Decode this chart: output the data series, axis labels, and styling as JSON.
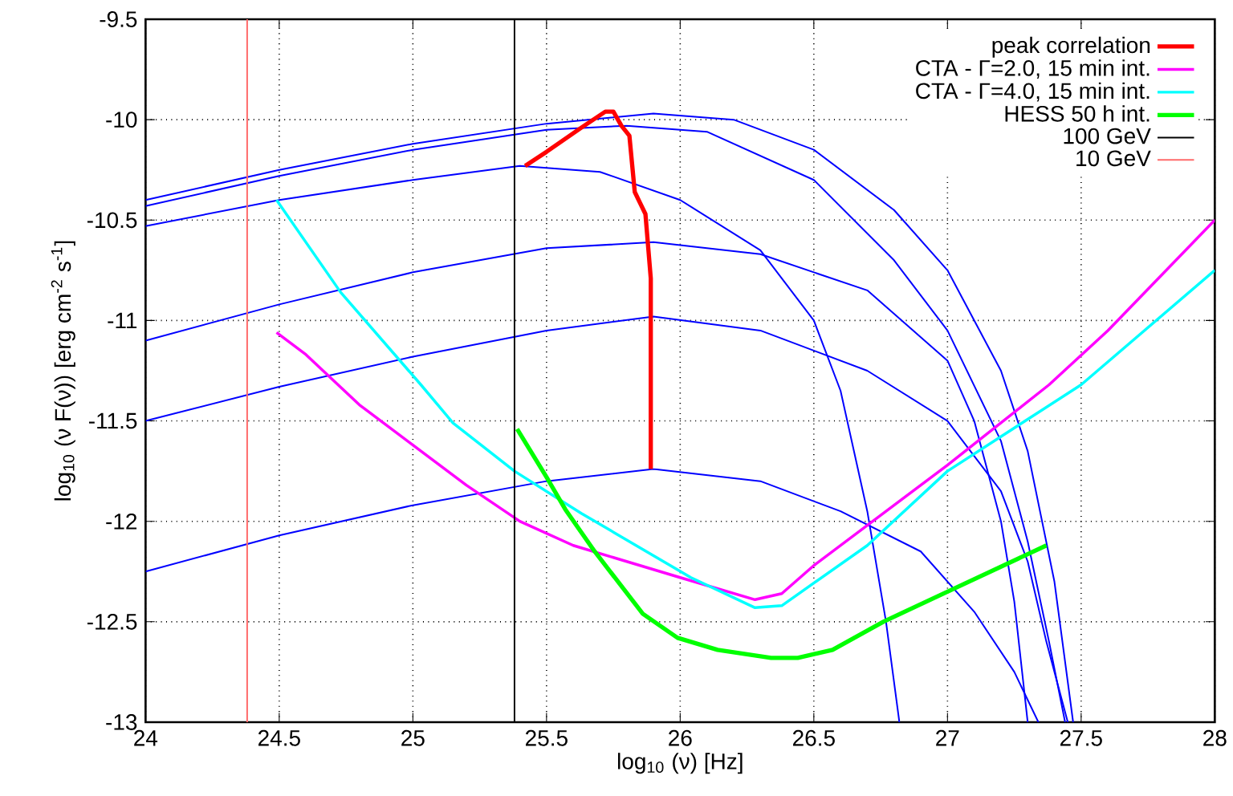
{
  "chart_data": {
    "type": "line",
    "xlabel": "log$_{10}$ (ν) [Hz]",
    "ylabel": "log$_{10}$ (ν F(ν)) [erg cm$^{-2}$ s$^{-1}$]",
    "xlim": [
      24,
      28
    ],
    "ylim": [
      -13,
      -9.5
    ],
    "xticks": [
      24,
      24.5,
      25,
      25.5,
      26,
      26.5,
      27,
      27.5,
      28
    ],
    "yticks": [
      -13,
      -12.5,
      -12,
      -11.5,
      -11,
      -10.5,
      -10,
      -9.5
    ],
    "grid": true,
    "legend": "top right",
    "marker": "none",
    "line_style": "solid",
    "series": [
      {
        "name": "peak correlation",
        "color": "#ff0000",
        "x": [
          25.42,
          25.5,
          25.63,
          25.72,
          25.75,
          25.78,
          25.81,
          25.83,
          25.87,
          25.89,
          25.89
        ],
        "values": [
          -10.23,
          -10.16,
          -10.04,
          -9.96,
          -9.96,
          -10.03,
          -10.08,
          -10.36,
          -10.47,
          -10.79,
          -11.74
        ]
      },
      {
        "name": "CTA - Γ=2.0, 15 min int.",
        "color": "#ff00ff",
        "x": [
          24.49,
          24.6,
          24.8,
          25.0,
          25.2,
          25.4,
          25.6,
          25.8,
          26.0,
          26.28,
          26.38,
          26.5,
          26.8,
          27.0,
          27.38,
          27.6,
          28.0
        ],
        "values": [
          -11.06,
          -11.17,
          -11.42,
          -11.62,
          -11.82,
          -12.0,
          -12.12,
          -12.2,
          -12.28,
          -12.39,
          -12.36,
          -12.22,
          -11.92,
          -11.72,
          -11.32,
          -11.05,
          -10.5
        ]
      },
      {
        "name": "CTA - Γ=4.0, 15 min int.",
        "color": "#00ffff",
        "x": [
          24.49,
          24.73,
          25.03,
          25.15,
          25.38,
          25.63,
          26.04,
          26.28,
          26.38,
          26.7,
          27.0,
          27.5,
          28.0
        ],
        "values": [
          -10.4,
          -10.86,
          -11.32,
          -11.51,
          -11.75,
          -11.96,
          -12.28,
          -12.43,
          -12.42,
          -12.12,
          -11.75,
          -11.32,
          -10.75
        ]
      },
      {
        "name": "HESS 50 h int.",
        "color": "#00ff00",
        "x": [
          25.39,
          25.5,
          25.57,
          25.68,
          25.86,
          25.99,
          26.14,
          26.34,
          26.44,
          26.57,
          26.76,
          27.0,
          27.37
        ],
        "values": [
          -11.54,
          -11.78,
          -11.94,
          -12.15,
          -12.46,
          -12.58,
          -12.64,
          -12.68,
          -12.68,
          -12.64,
          -12.5,
          -12.35,
          -12.12
        ]
      },
      {
        "name": "100 GeV",
        "color": "#000000",
        "x": [
          25.38,
          25.38
        ],
        "values": [
          -13,
          -9.5
        ]
      },
      {
        "name": "10 GeV",
        "color": "#ff6a6a",
        "x": [
          24.38,
          24.38
        ],
        "values": [
          -13,
          -9.5
        ]
      },
      {
        "color": "#0000ff",
        "x": [
          24,
          24.5,
          25,
          25.5,
          25.9,
          26.2,
          26.5,
          26.8,
          27.0,
          27.2,
          27.3,
          27.4,
          27.47
        ],
        "values": [
          -10.4,
          -10.25,
          -10.12,
          -10.02,
          -9.97,
          -10.0,
          -10.15,
          -10.45,
          -10.75,
          -11.25,
          -11.65,
          -12.3,
          -13
        ]
      },
      {
        "color": "#0000ff",
        "x": [
          24,
          24.5,
          25,
          25.5,
          25.8,
          26.1,
          26.5,
          26.8,
          27.0,
          27.2,
          27.3,
          27.38,
          27.44
        ],
        "values": [
          -10.43,
          -10.28,
          -10.15,
          -10.05,
          -10.03,
          -10.06,
          -10.3,
          -10.7,
          -11.05,
          -11.6,
          -12.1,
          -12.6,
          -13
        ]
      },
      {
        "color": "#0000ff",
        "x": [
          24,
          24.5,
          25,
          25.4,
          25.7,
          26.0,
          26.3,
          26.5,
          26.6,
          26.7,
          26.77,
          26.82
        ],
        "values": [
          -10.53,
          -10.4,
          -10.3,
          -10.23,
          -10.26,
          -10.4,
          -10.65,
          -11.0,
          -11.35,
          -11.95,
          -12.5,
          -13
        ]
      },
      {
        "color": "#0000ff",
        "x": [
          24,
          24.5,
          25,
          25.5,
          25.9,
          26.3,
          26.7,
          27.0,
          27.1,
          27.2,
          27.25,
          27.3
        ],
        "values": [
          -11.1,
          -10.92,
          -10.76,
          -10.64,
          -10.61,
          -10.67,
          -10.85,
          -11.2,
          -11.5,
          -12.0,
          -12.4,
          -13
        ]
      },
      {
        "color": "#0000ff",
        "x": [
          24,
          24.5,
          25,
          25.5,
          25.9,
          26.3,
          26.7,
          27.0,
          27.2,
          27.3,
          27.37,
          27.45
        ],
        "values": [
          -11.5,
          -11.33,
          -11.18,
          -11.05,
          -10.98,
          -11.05,
          -11.25,
          -11.5,
          -11.85,
          -12.2,
          -12.6,
          -13
        ]
      },
      {
        "color": "#0000ff",
        "x": [
          24,
          24.5,
          25,
          25.5,
          25.9,
          26.3,
          26.6,
          26.9,
          27.1,
          27.25,
          27.34
        ],
        "values": [
          -12.25,
          -12.07,
          -11.92,
          -11.8,
          -11.74,
          -11.8,
          -11.95,
          -12.15,
          -12.45,
          -12.75,
          -13
        ]
      }
    ]
  }
}
